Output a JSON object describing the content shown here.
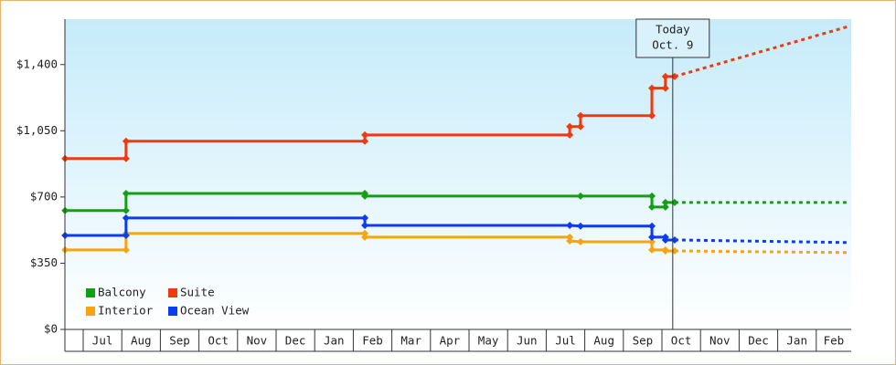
{
  "chart_data": {
    "type": "step-line",
    "categories": [
      "Jul",
      "Aug",
      "Sep",
      "Oct",
      "Nov",
      "Dec",
      "Jan",
      "Feb",
      "Mar",
      "Apr",
      "May",
      "Jun",
      "Jul",
      "Aug",
      "Sep",
      "Oct",
      "Nov",
      "Dec",
      "Jan",
      "Feb"
    ],
    "xlim": [
      -0.47,
      19.86
    ],
    "ylim": [
      0,
      1640
    ],
    "yticks": [
      {
        "value": 0,
        "label": "$0"
      },
      {
        "value": 350,
        "label": "$350"
      },
      {
        "value": 700,
        "label": "$700"
      },
      {
        "value": 1050,
        "label": "$1,050"
      },
      {
        "value": 1400,
        "label": "$1,400"
      }
    ],
    "annotation": {
      "x": 15.28,
      "lines": [
        "Today",
        "Oct. 9"
      ]
    },
    "series": [
      {
        "name": "Balcony",
        "color": "#11a011",
        "x": [
          -0.47,
          1.11,
          1.11,
          7.3,
          7.3,
          12.89,
          14.74,
          14.74,
          15.09,
          15.09,
          15.33
        ],
        "values": [
          628,
          628,
          719,
          719,
          705,
          705,
          705,
          647,
          647,
          671,
          671
        ],
        "forecast_x": [
          15.33,
          19.86
        ],
        "forecast_values": [
          671,
          671
        ]
      },
      {
        "name": "Suite",
        "color": "#f03a0e",
        "x": [
          -0.47,
          1.11,
          1.11,
          7.3,
          7.3,
          12.61,
          12.61,
          12.89,
          12.89,
          14.74,
          14.74,
          15.09,
          15.09,
          15.33
        ],
        "values": [
          903,
          903,
          995,
          995,
          1028,
          1028,
          1072,
          1072,
          1130,
          1130,
          1275,
          1275,
          1337,
          1337
        ],
        "forecast_x": [
          15.33,
          19.86
        ],
        "forecast_values": [
          1337,
          1603
        ]
      },
      {
        "name": "Interior",
        "color": "#f5a511",
        "x": [
          -0.47,
          1.11,
          1.11,
          7.3,
          7.3,
          12.61,
          12.61,
          12.89,
          14.74,
          14.74,
          15.09,
          15.09,
          15.33
        ],
        "values": [
          420,
          420,
          507,
          507,
          488,
          488,
          468,
          463,
          463,
          420,
          420,
          415,
          415
        ],
        "forecast_x": [
          15.33,
          19.86
        ],
        "forecast_values": [
          415,
          406
        ]
      },
      {
        "name": "Ocean View",
        "color": "#0a3cf0",
        "x": [
          -0.47,
          1.11,
          1.11,
          7.3,
          7.3,
          12.61,
          12.89,
          14.74,
          14.74,
          15.09,
          15.09,
          15.33
        ],
        "values": [
          497,
          497,
          589,
          589,
          550,
          550,
          546,
          546,
          488,
          488,
          473,
          473
        ],
        "forecast_x": [
          15.33,
          19.86
        ],
        "forecast_values": [
          473,
          459
        ]
      }
    ]
  }
}
